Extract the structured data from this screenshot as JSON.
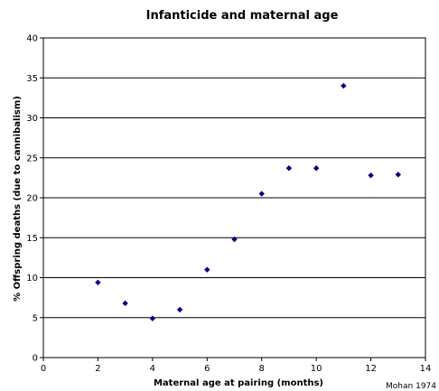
{
  "chart_data": {
    "type": "scatter",
    "title": "Infanticide and maternal age",
    "xlabel": "Maternal age at pairing (months)",
    "ylabel": "% Offspring deaths (due to cannibalism)",
    "xlim": [
      0,
      14
    ],
    "ylim": [
      0,
      40
    ],
    "x_ticks": [
      0,
      2,
      4,
      6,
      8,
      10,
      12,
      14
    ],
    "y_ticks": [
      0,
      5,
      10,
      15,
      20,
      25,
      30,
      35,
      40
    ],
    "grid": "horizontal",
    "marker": "diamond",
    "series": [
      {
        "points": [
          {
            "x": 2,
            "y": 9.4
          },
          {
            "x": 3,
            "y": 6.8
          },
          {
            "x": 4,
            "y": 4.9
          },
          {
            "x": 5,
            "y": 6.0
          },
          {
            "x": 6,
            "y": 11.0
          },
          {
            "x": 7,
            "y": 14.8
          },
          {
            "x": 8,
            "y": 20.5
          },
          {
            "x": 9,
            "y": 23.7
          },
          {
            "x": 10,
            "y": 23.7
          },
          {
            "x": 11,
            "y": 34.0
          },
          {
            "x": 12,
            "y": 22.8
          },
          {
            "x": 13,
            "y": 22.9
          }
        ]
      }
    ],
    "source_note": "Mohan 1974"
  },
  "colors": {
    "marker": "#00007f",
    "grid": "#000000",
    "axis": "#000000"
  }
}
